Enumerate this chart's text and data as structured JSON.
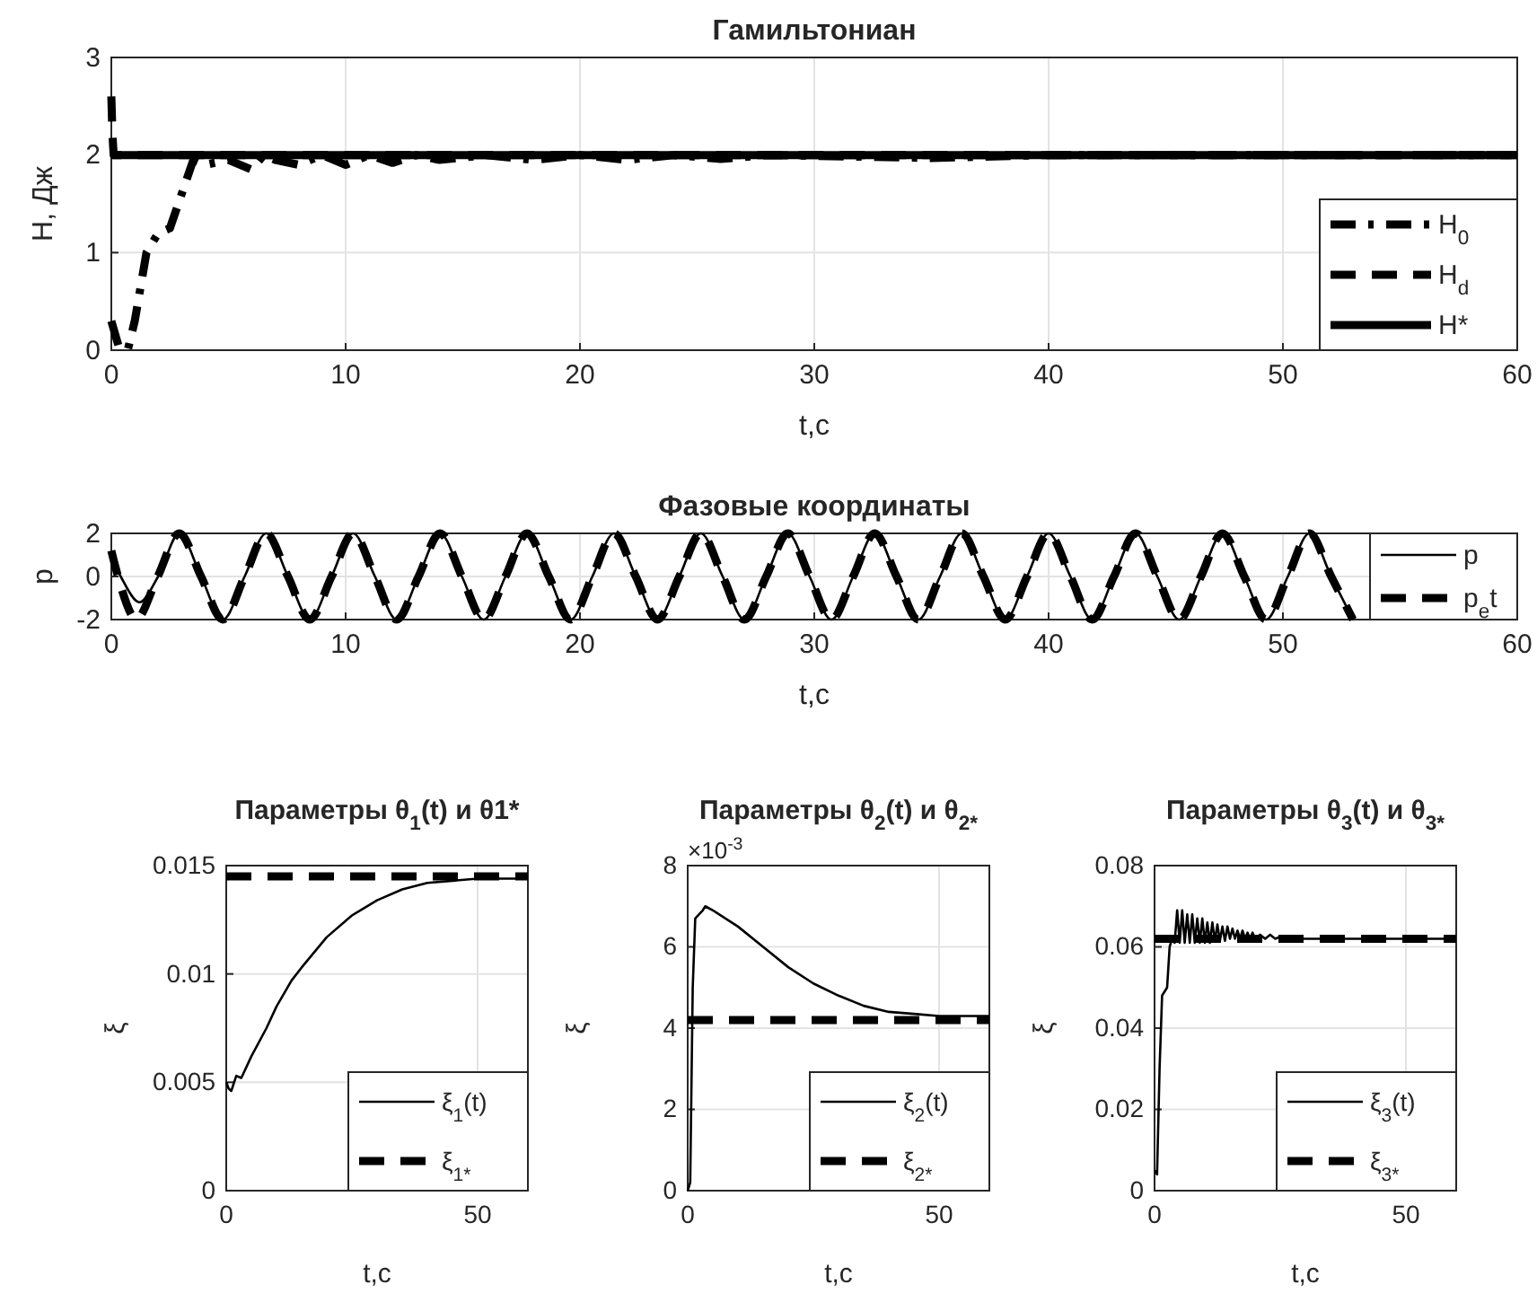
{
  "chart_data": [
    {
      "type": "line",
      "title": "Гамильтониан",
      "xlabel": "t,c",
      "ylabel": "H, Дж",
      "xlim": [
        0,
        60
      ],
      "xticks": [
        0,
        10,
        20,
        30,
        40,
        50,
        60
      ],
      "ylim": [
        0,
        3
      ],
      "yticks": [
        0,
        1,
        2,
        3
      ],
      "grid": true,
      "legend": "bottom right",
      "series": [
        {
          "name": "H$_{0}$",
          "color": "#000000",
          "line_style": "dashdot",
          "x": [
            0,
            0.3,
            0.7,
            1,
            1.5,
            2,
            2.5,
            3,
            3.5,
            4,
            5,
            6,
            6.5,
            7,
            8,
            9,
            10,
            11,
            12,
            13,
            14,
            16,
            18,
            20,
            22,
            24,
            26,
            28,
            35,
            40,
            60
          ],
          "values": [
            0.3,
            0.05,
            0,
            0.3,
            1,
            1.2,
            1.25,
            1.6,
            1.95,
            1.9,
            1.95,
            1.85,
            2,
            1.95,
            1.9,
            2,
            1.9,
            2,
            1.92,
            2,
            1.95,
            2,
            1.95,
            2,
            1.95,
            2,
            1.96,
            2,
            1.97,
            2,
            2
          ]
        },
        {
          "name": "H$_{d}$",
          "color": "#000000",
          "line_style": "dashed",
          "x": [
            0,
            0.05,
            0.1,
            60
          ],
          "values": [
            2.6,
            2.2,
            2,
            2
          ]
        },
        {
          "name": "H*",
          "color": "#000000",
          "line_style": "solid",
          "x": [
            0,
            60
          ],
          "values": [
            2,
            2
          ]
        }
      ]
    },
    {
      "type": "line",
      "title": "Фазовые координаты",
      "xlabel": "t,c",
      "ylabel": "p",
      "xlim": [
        0,
        60
      ],
      "xticks": [
        0,
        10,
        20,
        30,
        40,
        50,
        60
      ],
      "ylim": [
        -2,
        2
      ],
      "yticks": [
        -2,
        0,
        2
      ],
      "grid": true,
      "legend": "right",
      "series": [
        {
          "name": "p",
          "color": "#000000",
          "line_style": "solid",
          "x": [
            0,
            0.4,
            1.2,
            2,
            2.9,
            3.83,
            4.76,
            5.69,
            6.61,
            7.54,
            8.47,
            9.4,
            10.32,
            11.25,
            12.18,
            13.11,
            14.03,
            14.96,
            15.89,
            16.82,
            17.74,
            18.67,
            19.6,
            20.53,
            21.45,
            22.38,
            23.31,
            24.24,
            25.16,
            26.09,
            27.02,
            27.95,
            28.87,
            29.8,
            30.73,
            31.66,
            32.58,
            33.51,
            34.44,
            35.37,
            36.29,
            37.22,
            38.15,
            39.08,
            40,
            40.93,
            41.86,
            42.79,
            43.71,
            44.64,
            45.57,
            46.5,
            47.42,
            48.35,
            49.28,
            50.21,
            51.13,
            52.06,
            52.99
          ],
          "values": [
            1,
            0,
            -1.2,
            0,
            2,
            0,
            -2,
            0,
            2,
            0,
            -2,
            0,
            2,
            0,
            -2,
            0,
            2,
            0,
            -2,
            0,
            2,
            0,
            -2,
            0,
            2,
            0,
            -2,
            0,
            2,
            0,
            -2,
            0,
            2,
            0,
            -2,
            0,
            2,
            0,
            -2,
            0,
            2,
            0,
            -2,
            0,
            2,
            0,
            -2,
            0,
            2,
            0,
            -2,
            0,
            2,
            0,
            -2,
            0,
            2,
            0,
            -2
          ]
        },
        {
          "name": "p$_{e}$t",
          "color": "#000000",
          "line_style": "dashed",
          "x": [
            0,
            1.05,
            1.98,
            2.9,
            3.83,
            4.76,
            5.69,
            6.61,
            7.54,
            8.47,
            9.4,
            10.32,
            11.25,
            12.18,
            13.11,
            14.03,
            14.96,
            15.89,
            16.82,
            17.74,
            18.67,
            19.6,
            20.53,
            21.45,
            22.38,
            23.31,
            24.24,
            25.16,
            26.09,
            27.02,
            27.95,
            28.87,
            29.8,
            30.73,
            31.66,
            32.58,
            33.51,
            34.44,
            35.37,
            36.29,
            37.22,
            38.15,
            39.08,
            40,
            40.93,
            41.86,
            42.79,
            43.71,
            44.64,
            45.57,
            46.5,
            47.42,
            48.35,
            49.28,
            50.21,
            51.13,
            52.06,
            52.99
          ],
          "values": [
            1.2,
            -2,
            0,
            2,
            0,
            -2,
            0,
            2,
            0,
            -2,
            0,
            2,
            0,
            -2,
            0,
            2,
            0,
            -2,
            0,
            2,
            0,
            -2,
            0,
            2,
            0,
            -2,
            0,
            2,
            0,
            -2,
            0,
            2,
            0,
            -2,
            0,
            2,
            0,
            -2,
            0,
            2,
            0,
            -2,
            0,
            2,
            0,
            -2,
            0,
            2,
            0,
            -2,
            0,
            2,
            0,
            -2,
            0,
            2,
            0,
            -2
          ]
        }
      ]
    },
    {
      "type": "line",
      "title": "Параметры θ$_{1}$(t) и θ1*",
      "xlabel": "t,c",
      "ylabel": "ξ",
      "xlim": [
        0,
        60
      ],
      "xticks": [
        0,
        50
      ],
      "ylim": [
        0,
        0.015
      ],
      "yticks": [
        0,
        0.005,
        0.01,
        0.015
      ],
      "grid": true,
      "legend": "bottom right",
      "series": [
        {
          "name": "ξ$_{1}$(t)",
          "color": "#000000",
          "line_style": "solid",
          "x": [
            0,
            0.5,
            1,
            2,
            3,
            5,
            8,
            10,
            13,
            15,
            20,
            25,
            30,
            35,
            40,
            45,
            50,
            60
          ],
          "values": [
            0.005,
            0.0047,
            0.0046,
            0.0053,
            0.0052,
            0.0062,
            0.0075,
            0.0085,
            0.0097,
            0.0103,
            0.0117,
            0.0127,
            0.0134,
            0.0139,
            0.0142,
            0.0143,
            0.0144,
            0.0144
          ]
        },
        {
          "name": "ξ$_{1*}$",
          "color": "#000000",
          "line_style": "dashed",
          "x": [
            0,
            60
          ],
          "values": [
            0.0145,
            0.0145
          ]
        }
      ]
    },
    {
      "type": "line",
      "title": "Параметры θ$_{2}$(t) и θ$_{2*}$",
      "xlabel": "t,c",
      "ylabel": "ξ",
      "annotations": [
        "×10$^{-3}$"
      ],
      "xlim": [
        0,
        60
      ],
      "xticks": [
        0,
        50
      ],
      "ylim": [
        0,
        8
      ],
      "yticks": [
        0,
        2,
        4,
        6,
        8
      ],
      "grid": true,
      "legend": "bottom right",
      "series": [
        {
          "name": "ξ$_{2}$(t)",
          "color": "#000000",
          "line_style": "solid",
          "x": [
            0,
            0.5,
            1,
            1.5,
            3,
            3.5,
            5,
            10,
            15,
            20,
            25,
            30,
            35,
            40,
            45,
            50,
            60
          ],
          "values": [
            0,
            0.2,
            5,
            6.7,
            6.9,
            7,
            6.9,
            6.5,
            6,
            5.5,
            5.1,
            4.8,
            4.55,
            4.4,
            4.35,
            4.3,
            4.3
          ]
        },
        {
          "name": "ξ$_{2*}$",
          "color": "#000000",
          "line_style": "dashed",
          "x": [
            0,
            60
          ],
          "values": [
            4.2,
            4.2
          ]
        }
      ]
    },
    {
      "type": "line",
      "title": "Параметры θ$_{3}$(t) и θ$_{3*}$",
      "xlabel": "t,c",
      "ylabel": "ξ",
      "xlim": [
        0,
        60
      ],
      "xticks": [
        0,
        50
      ],
      "ylim": [
        0,
        0.08
      ],
      "yticks": [
        0,
        0.02,
        0.04,
        0.06,
        0.08
      ],
      "grid": true,
      "legend": "bottom right",
      "series": [
        {
          "name": "ξ$_{3}$(t)",
          "color": "#000000",
          "line_style": "solid",
          "x": [
            0,
            0.5,
            1,
            1.5,
            2,
            2.5,
            3,
            3.5,
            4,
            4.5,
            5,
            5.5,
            6,
            6.5,
            7,
            7.5,
            8,
            8.5,
            9,
            9.5,
            10,
            10.5,
            11,
            11.5,
            12,
            12.5,
            13,
            13.5,
            14,
            14.5,
            15,
            15.5,
            16,
            16.5,
            17,
            17.5,
            18,
            18.5,
            19,
            19.5,
            20,
            21,
            22,
            23,
            24,
            25,
            26,
            27,
            28,
            30,
            40,
            50,
            60
          ],
          "values": [
            0.005,
            0.004,
            0.03,
            0.048,
            0.049,
            0.05,
            0.06,
            0.062,
            0.061,
            0.069,
            0.061,
            0.069,
            0.061,
            0.068,
            0.061,
            0.068,
            0.061,
            0.067,
            0.061,
            0.067,
            0.061,
            0.066,
            0.061,
            0.066,
            0.0615,
            0.0655,
            0.0615,
            0.065,
            0.0615,
            0.065,
            0.062,
            0.0645,
            0.062,
            0.064,
            0.062,
            0.064,
            0.062,
            0.0635,
            0.062,
            0.0635,
            0.062,
            0.063,
            0.062,
            0.063,
            0.062,
            0.0625,
            0.062,
            0.0625,
            0.062,
            0.062,
            0.062,
            0.062,
            0.062
          ]
        },
        {
          "name": "ξ$_{3*}$",
          "color": "#000000",
          "line_style": "dashed",
          "x": [
            0,
            60
          ],
          "values": [
            0.062,
            0.062
          ]
        }
      ]
    }
  ]
}
